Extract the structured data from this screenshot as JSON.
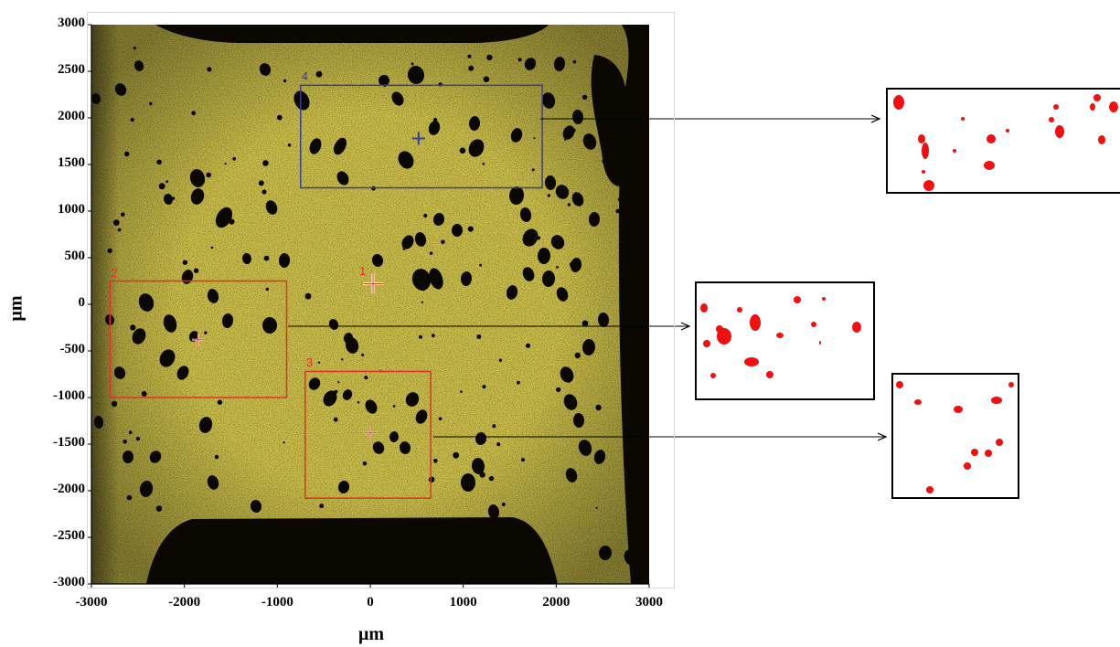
{
  "colors": {
    "sample": "#c9bd4c",
    "dark": "#0a0800",
    "roi_red": "#e3312a",
    "roi_blue": "#3c3d9a",
    "spot_red": "#f01010"
  },
  "axes": {
    "x_title": "μm",
    "y_title": "μm",
    "x_ticks": [
      "-3000",
      "-2000",
      "-1000",
      "0",
      "1000",
      "2000",
      "3000"
    ],
    "y_ticks": [
      "3000",
      "2500",
      "2000",
      "1500",
      "1000",
      "500",
      "0",
      "-500",
      "-1000",
      "-1500",
      "-2000",
      "-2500",
      "-3000"
    ],
    "x_range": [
      -3000,
      3000
    ],
    "y_range": [
      -3000,
      3000
    ]
  },
  "regions": [
    {
      "label": "1",
      "color": "roi_red",
      "center": [
        30,
        220
      ]
    },
    {
      "label": "2",
      "color": "roi_red",
      "x": [
        -2800,
        -900
      ],
      "y": [
        -1000,
        250
      ],
      "center": [
        -1850,
        -380
      ]
    },
    {
      "label": "3",
      "color": "roi_red",
      "x": [
        -700,
        650
      ],
      "y": [
        -2080,
        -720
      ],
      "center": [
        0,
        -1380
      ]
    },
    {
      "label": "4",
      "color": "roi_blue",
      "x": [
        -750,
        1850
      ],
      "y": [
        1250,
        2350
      ],
      "center": [
        520,
        1780
      ]
    }
  ],
  "insets": [
    {
      "name": "region-4-inset"
    },
    {
      "name": "region-2-inset"
    },
    {
      "name": "region-3-inset"
    }
  ]
}
